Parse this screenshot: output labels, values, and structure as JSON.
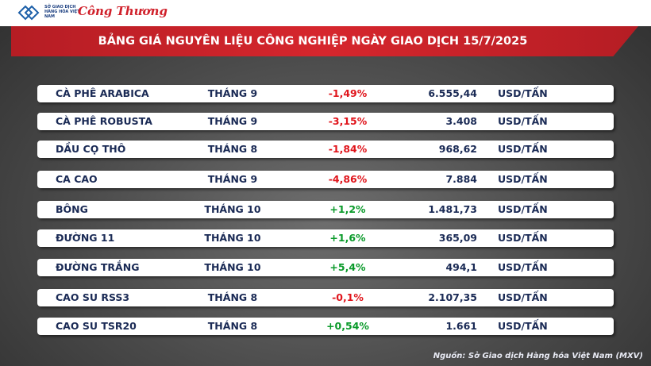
{
  "header": {
    "exchange_logo": "SỞ GIAO DỊCH HÀNG HÓA VIỆT NAM",
    "brand": "Công Thương",
    "title": "BẢNG GIÁ NGUYÊN LIỆU CÔNG NGHIỆP NGÀY GIAO DỊCH 15/7/2025"
  },
  "table": {
    "rows": [
      [
        "CÀ PHÊ ARABICA",
        "THÁNG 9",
        "-1,49%",
        "6.555,44",
        "USD/TẤN"
      ],
      [
        "CÀ PHÊ ROBUSTA",
        "THÁNG 9",
        "-3,15%",
        "3.408",
        "USD/TẤN"
      ],
      [
        "DẦU CỌ THÔ",
        "THÁNG 8",
        "-1,84%",
        "968,62",
        "USD/TẤN"
      ],
      [
        "CA CAO",
        "THÁNG 9",
        "-4,86%",
        "7.884",
        "USD/TẤN"
      ],
      [
        "BÔNG",
        "THÁNG 10",
        "+1,2%",
        "1.481,73",
        "USD/TẤN"
      ],
      [
        "ĐƯỜNG 11",
        "THÁNG 10",
        "+1,6%",
        "365,09",
        "USD/TẤN"
      ],
      [
        "ĐƯỜNG TRẮNG",
        "THÁNG 10",
        "+5,4%",
        "494,1",
        "USD/TẤN"
      ],
      [
        "CAO SU RSS3",
        "THÁNG 8",
        "-0,1%",
        "2.107,35",
        "USD/TẤN"
      ],
      [
        "CAO SU TSR20",
        "THÁNG 8",
        "+0,54%",
        "1.661",
        "USD/TẤN"
      ]
    ]
  },
  "footer": {
    "source": "Nguồn: Sở Giao dịch Hàng hóa Việt Nam (MXV)"
  }
}
